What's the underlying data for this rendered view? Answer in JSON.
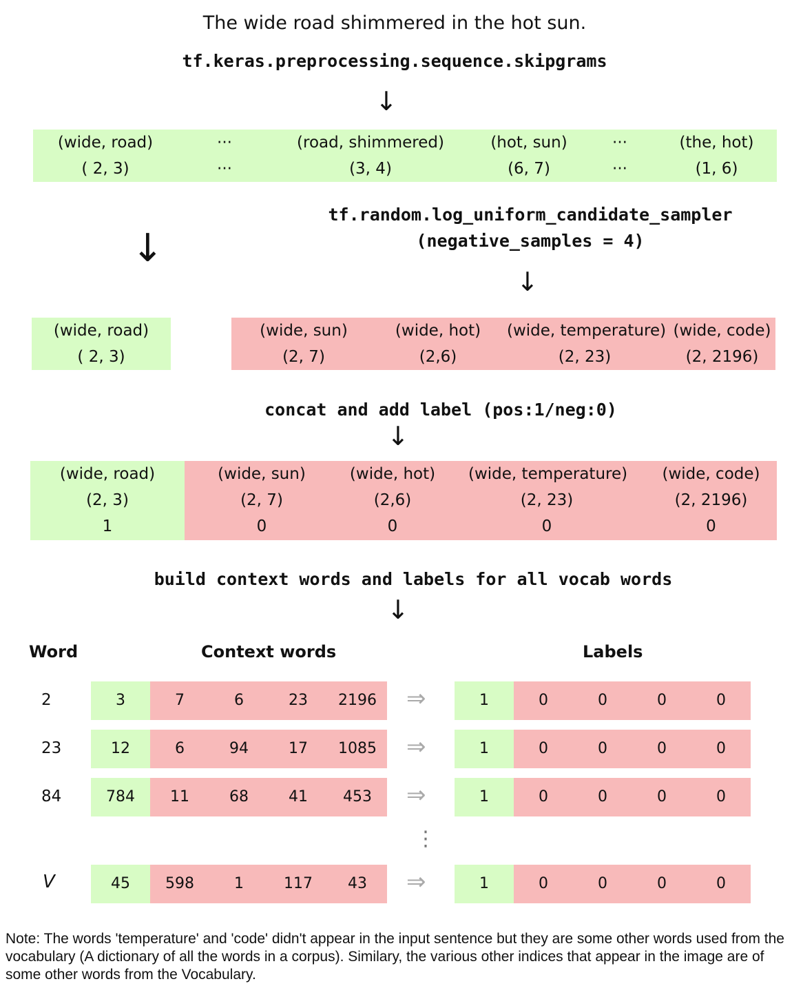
{
  "sentence": "The wide road shimmered in the hot sun.",
  "skipgram_call": "tf.keras.preprocessing.sequence.skipgrams",
  "arrow": "↓",
  "ellipsis": "···",
  "vertical_dots": "⋮",
  "implies": "⇒",
  "skipgram_pairs": [
    {
      "pair": "(wide, road)",
      "ids": "( 2, 3)"
    },
    {
      "pair": "(road, shimmered)",
      "ids": "(3, 4)"
    },
    {
      "pair": "(hot, sun)",
      "ids": "(6, 7)"
    },
    {
      "pair": "(the, hot)",
      "ids": "(1, 6)"
    }
  ],
  "sampler_call_line1": "tf.random.log_uniform_candidate_sampler",
  "sampler_call_line2": "(negative_samples = 4)",
  "positive": {
    "pair": "(wide, road)",
    "ids": "( 2, 3)"
  },
  "negatives": [
    {
      "pair": "(wide, sun)",
      "ids": "(2, 7)"
    },
    {
      "pair": "(wide, hot)",
      "ids": "(2,6)"
    },
    {
      "pair": "(wide, temperature)",
      "ids": "(2, 23)"
    },
    {
      "pair": "(wide, code)",
      "ids": "(2, 2196)"
    }
  ],
  "concat_label": "concat and add label",
  "concat_label_suffix": "(pos:1/neg:0)",
  "combined": [
    {
      "pair": "(wide, road)",
      "ids": "(2, 3)",
      "label": "1"
    },
    {
      "pair": "(wide, sun)",
      "ids": "(2, 7)",
      "label": "0"
    },
    {
      "pair": "(wide, hot)",
      "ids": "(2,6)",
      "label": "0"
    },
    {
      "pair": "(wide, temperature)",
      "ids": "(2, 23)",
      "label": "0"
    },
    {
      "pair": "(wide, code)",
      "ids": "(2, 2196)",
      "label": "0"
    }
  ],
  "build_label": "build context words and labels for all vocab words",
  "table": {
    "word_header": "Word",
    "context_header": "Context words",
    "labels_header": "Labels",
    "rows": [
      {
        "word": "2",
        "context": [
          "3",
          "7",
          "6",
          "23",
          "2196"
        ],
        "labels": [
          "1",
          "0",
          "0",
          "0",
          "0"
        ]
      },
      {
        "word": "23",
        "context": [
          "12",
          "6",
          "94",
          "17",
          "1085"
        ],
        "labels": [
          "1",
          "0",
          "0",
          "0",
          "0"
        ]
      },
      {
        "word": "84",
        "context": [
          "784",
          "11",
          "68",
          "41",
          "453"
        ],
        "labels": [
          "1",
          "0",
          "0",
          "0",
          "0"
        ]
      },
      {
        "word": "V",
        "context": [
          "45",
          "598",
          "1",
          "117",
          "43"
        ],
        "labels": [
          "1",
          "0",
          "0",
          "0",
          "0"
        ]
      }
    ]
  },
  "note": "Note: The words 'temperature' and 'code' didn't appear in the input sentence but they are some other words used from the vocabulary (A dictionary of all the words in a corpus). Similary, the various other indices that appear in the image are of some other words from the Vocabulary.",
  "colors": {
    "positive": "#d8fcc5",
    "negative": "#f8baba"
  }
}
